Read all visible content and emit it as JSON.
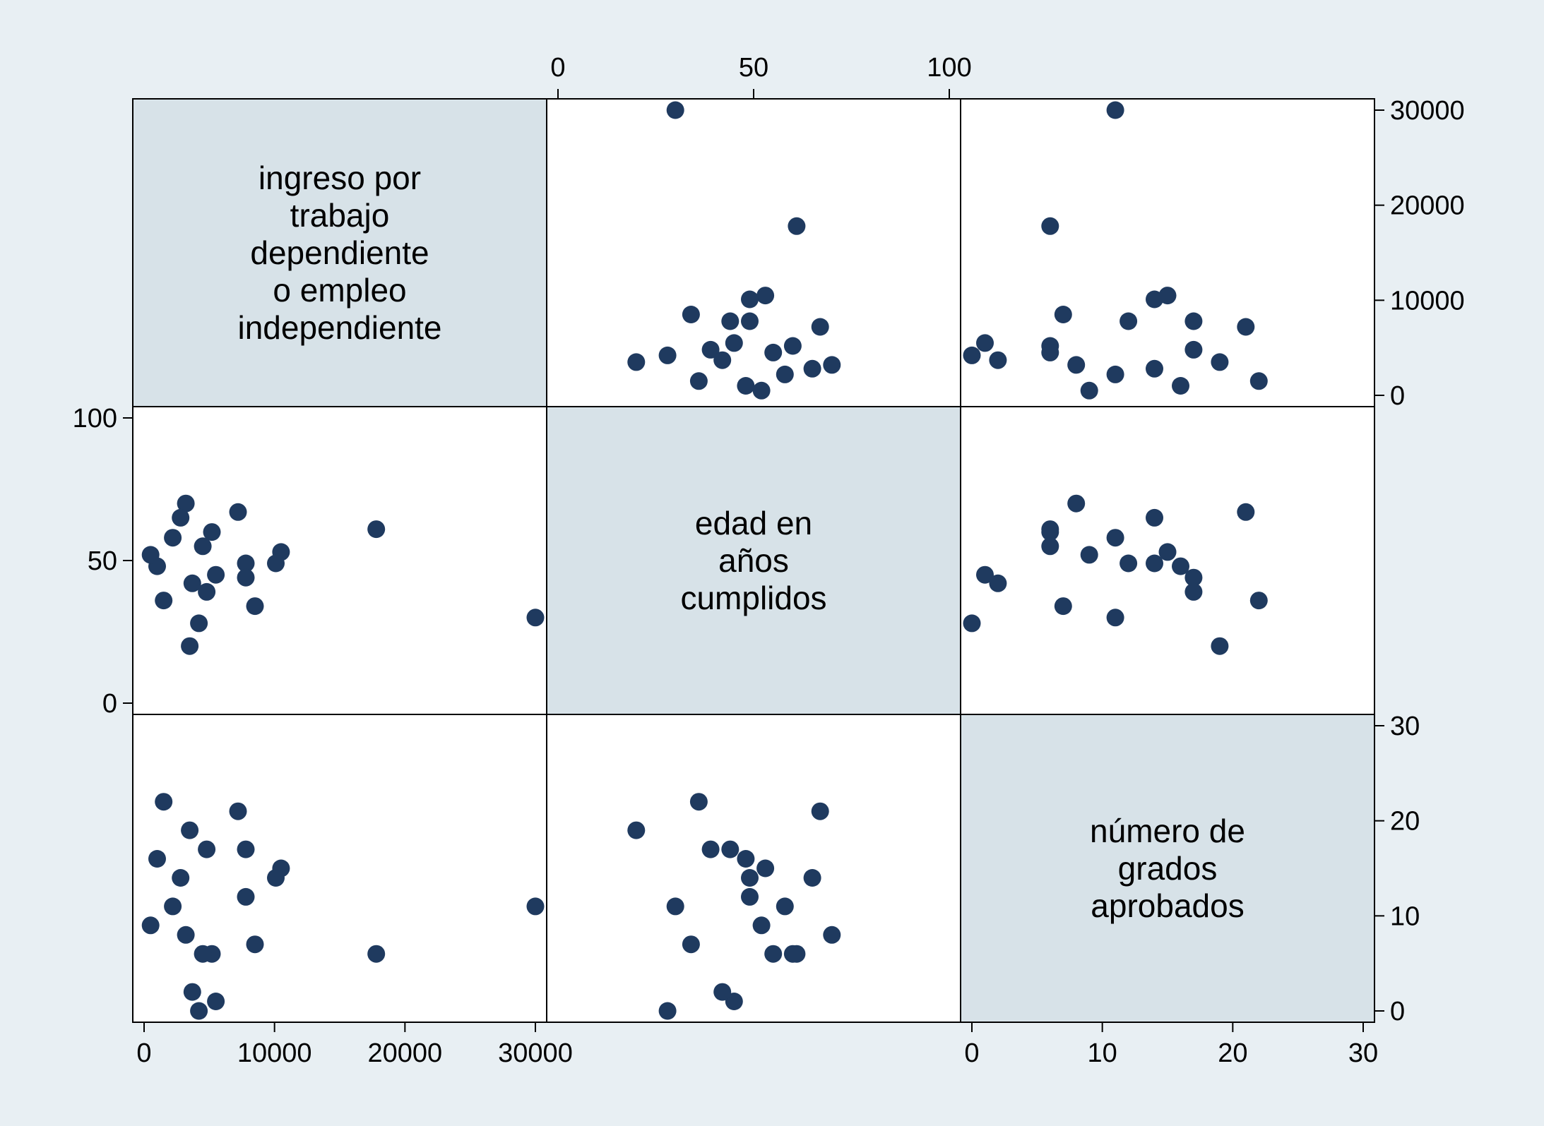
{
  "chart_data": {
    "type": "scatter",
    "subtype": "scatter-matrix",
    "background_color": "#e8eff3",
    "diagonal_fill": "#d7e2e8",
    "plot_fill": "#ffffff",
    "marker_color": "#1f3a5f",
    "variables": [
      {
        "key": "ingreso",
        "label": "ingreso por trabajo dependiente o empleo independiente",
        "label_lines": [
          "ingreso por",
          "trabajo",
          "dependiente",
          "o empleo",
          "independiente"
        ],
        "range": [
          0,
          30000
        ],
        "ticks": [
          0,
          10000,
          20000,
          30000
        ],
        "tick_labels": [
          "0",
          "10000",
          "20000",
          "30000"
        ]
      },
      {
        "key": "edad",
        "label": "edad en años cumplidos",
        "label_lines": [
          "edad en",
          "años",
          "cumplidos"
        ],
        "range": [
          0,
          100
        ],
        "ticks": [
          0,
          50,
          100
        ],
        "tick_labels": [
          "0",
          "50",
          "100"
        ]
      },
      {
        "key": "grados",
        "label": "número de grados aprobados",
        "label_lines": [
          "número de",
          "grados",
          "aprobados"
        ],
        "range": [
          0,
          30
        ],
        "ticks": [
          0,
          10,
          20,
          30
        ],
        "tick_labels": [
          "0",
          "10",
          "20",
          "30"
        ]
      }
    ],
    "axis_positions": {
      "ingreso_x": "bottom",
      "ingreso_y": "right",
      "edad_x": "top",
      "edad_y": "left",
      "grados_x": "bottom",
      "grados_y": "right"
    },
    "observations": [
      {
        "ingreso": 30000,
        "edad": 30,
        "grados": 11
      },
      {
        "ingreso": 17800,
        "edad": 61,
        "grados": 6
      },
      {
        "ingreso": 10500,
        "edad": 53,
        "grados": 15
      },
      {
        "ingreso": 10100,
        "edad": 49,
        "grados": 14
      },
      {
        "ingreso": 8500,
        "edad": 34,
        "grados": 7
      },
      {
        "ingreso": 7800,
        "edad": 49,
        "grados": 12
      },
      {
        "ingreso": 7800,
        "edad": 44,
        "grados": 17
      },
      {
        "ingreso": 7200,
        "edad": 67,
        "grados": 21
      },
      {
        "ingreso": 5500,
        "edad": 45,
        "grados": 1
      },
      {
        "ingreso": 5200,
        "edad": 60,
        "grados": 6
      },
      {
        "ingreso": 4800,
        "edad": 39,
        "grados": 17
      },
      {
        "ingreso": 4500,
        "edad": 55,
        "grados": 6
      },
      {
        "ingreso": 4200,
        "edad": 28,
        "grados": 0
      },
      {
        "ingreso": 3700,
        "edad": 42,
        "grados": 2
      },
      {
        "ingreso": 3500,
        "edad": 20,
        "grados": 19
      },
      {
        "ingreso": 3200,
        "edad": 70,
        "grados": 8
      },
      {
        "ingreso": 2800,
        "edad": 65,
        "grados": 14
      },
      {
        "ingreso": 2200,
        "edad": 58,
        "grados": 11
      },
      {
        "ingreso": 1500,
        "edad": 36,
        "grados": 22
      },
      {
        "ingreso": 1000,
        "edad": 48,
        "grados": 16
      },
      {
        "ingreso": 500,
        "edad": 52,
        "grados": 9
      }
    ]
  }
}
